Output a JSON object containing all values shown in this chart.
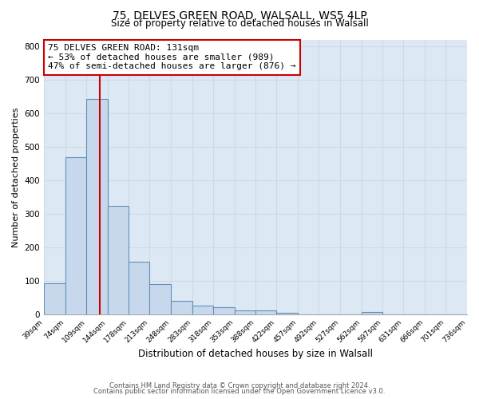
{
  "title1": "75, DELVES GREEN ROAD, WALSALL, WS5 4LP",
  "title2": "Size of property relative to detached houses in Walsall",
  "xlabel": "Distribution of detached houses by size in Walsall",
  "ylabel": "Number of detached properties",
  "bar_values": [
    95,
    470,
    645,
    325,
    158,
    92,
    42,
    28,
    22,
    13,
    13,
    7,
    0,
    0,
    0,
    8,
    0,
    0,
    0,
    0
  ],
  "bin_edges": [
    39,
    74,
    109,
    144,
    178,
    213,
    248,
    283,
    318,
    353,
    388,
    422,
    457,
    492,
    527,
    562,
    597,
    631,
    666,
    701,
    736
  ],
  "bin_labels": [
    "39sqm",
    "74sqm",
    "109sqm",
    "144sqm",
    "178sqm",
    "213sqm",
    "248sqm",
    "283sqm",
    "318sqm",
    "353sqm",
    "388sqm",
    "422sqm",
    "457sqm",
    "492sqm",
    "527sqm",
    "562sqm",
    "597sqm",
    "631sqm",
    "666sqm",
    "701sqm",
    "736sqm"
  ],
  "bar_color": "#c8d8ec",
  "bar_edge_color": "#6090b8",
  "property_line_x": 131,
  "property_line_color": "#cc0000",
  "annotation_title": "75 DELVES GREEN ROAD: 131sqm",
  "annotation_line1": "← 53% of detached houses are smaller (989)",
  "annotation_line2": "47% of semi-detached houses are larger (876) →",
  "annotation_box_color": "#ffffff",
  "annotation_box_edge": "#cc0000",
  "ylim": [
    0,
    820
  ],
  "yticks": [
    0,
    100,
    200,
    300,
    400,
    500,
    600,
    700,
    800
  ],
  "grid_color": "#d0d8e4",
  "fig_bg_color": "#ffffff",
  "axes_bg_color": "#dce8f4",
  "footer1": "Contains HM Land Registry data © Crown copyright and database right 2024.",
  "footer2": "Contains public sector information licensed under the Open Government Licence v3.0."
}
